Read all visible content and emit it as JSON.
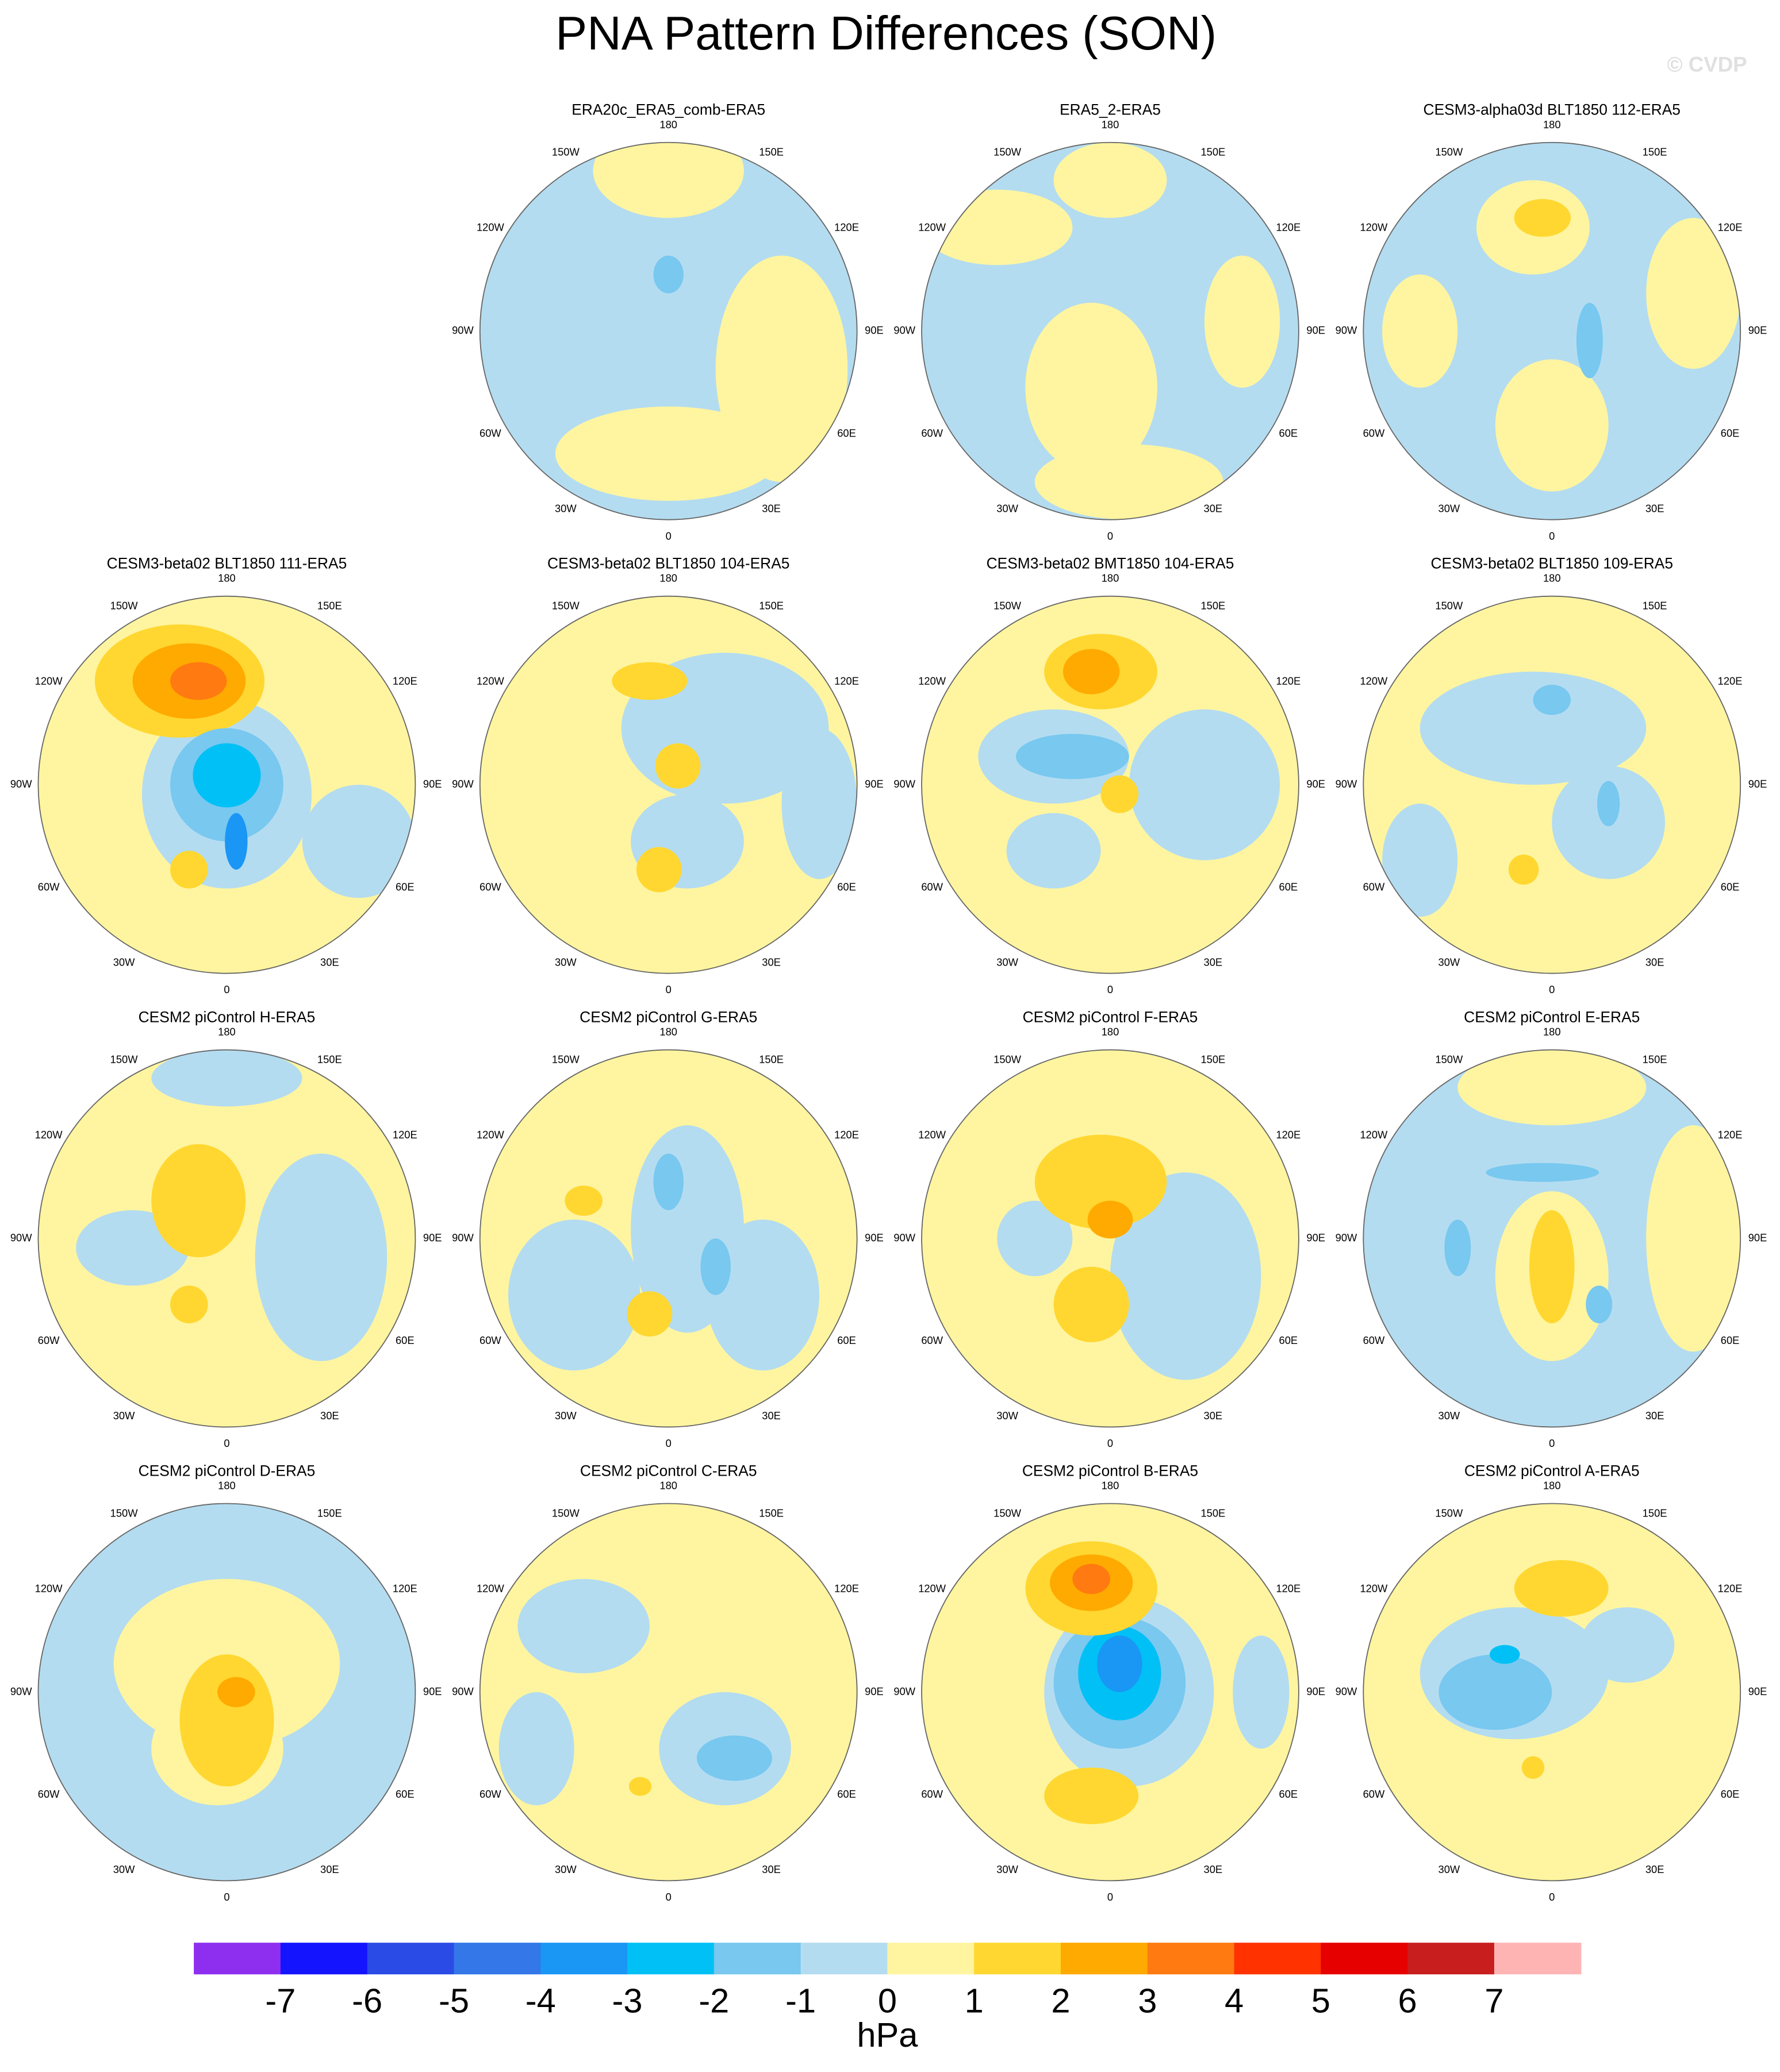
{
  "title": "PNA Pattern Differences (SON)",
  "watermark": "© CVDP",
  "longitude_labels": [
    {
      "value": 180,
      "label": "180"
    },
    {
      "value": 150,
      "label": "150E"
    },
    {
      "value": 120,
      "label": "120E"
    },
    {
      "value": 90,
      "label": "90E"
    },
    {
      "value": 60,
      "label": "60E"
    },
    {
      "value": 30,
      "label": "30E"
    },
    {
      "value": 0,
      "label": "0"
    },
    {
      "value": -30,
      "label": "30W"
    },
    {
      "value": -60,
      "label": "60W"
    },
    {
      "value": -90,
      "label": "90W"
    },
    {
      "value": -120,
      "label": "120W"
    },
    {
      "value": -150,
      "label": "150W"
    }
  ],
  "panels": [
    {
      "title": "ERA20c_ERA5_comb-ERA5"
    },
    {
      "title": "ERA5_2-ERA5"
    },
    {
      "title": "CESM3-alpha03d BLT1850 112-ERA5"
    },
    {
      "title": "CESM3-beta02 BLT1850 111-ERA5"
    },
    {
      "title": "CESM3-beta02 BLT1850 104-ERA5"
    },
    {
      "title": "CESM3-beta02 BMT1850 104-ERA5"
    },
    {
      "title": "CESM3-beta02 BLT1850 109-ERA5"
    },
    {
      "title": "CESM2 piControl H-ERA5"
    },
    {
      "title": "CESM2 piControl G-ERA5"
    },
    {
      "title": "CESM2 piControl F-ERA5"
    },
    {
      "title": "CESM2 piControl E-ERA5"
    },
    {
      "title": "CESM2 piControl D-ERA5"
    },
    {
      "title": "CESM2 piControl C-ERA5"
    },
    {
      "title": "CESM2 piControl B-ERA5"
    },
    {
      "title": "CESM2 piControl A-ERA5"
    }
  ],
  "colorbar": {
    "levels": [
      -7,
      -6,
      -5,
      -4,
      -3,
      -2,
      -1,
      0,
      1,
      2,
      3,
      4,
      5,
      6,
      7
    ],
    "colors": [
      "#8e2ff0",
      "#1414ff",
      "#2a4be6",
      "#3377e8",
      "#1a96f5",
      "#00c0f5",
      "#78c8f0",
      "#b4dcf0",
      "#fff5a0",
      "#ffd730",
      "#ffaa00",
      "#ff7a10",
      "#ff3200",
      "#e60000",
      "#c81e1e",
      "#ffb4b4"
    ],
    "unit": "hPa"
  }
}
